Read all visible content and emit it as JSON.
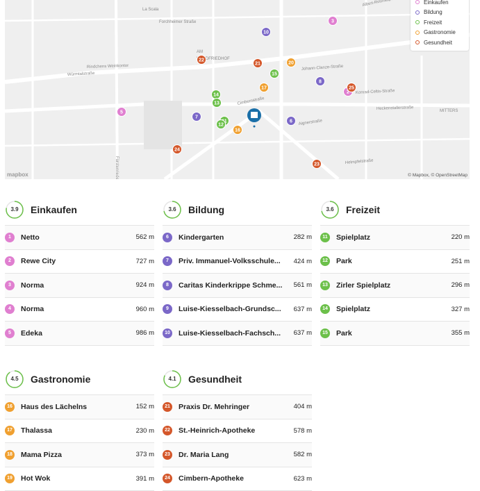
{
  "map": {
    "labels": [
      "La Scala",
      "Forchheimer Straße",
      "Albert-Roßhaupter-Straße",
      "AM",
      "WALDFRIEDHOF",
      "Rindchens Weinkontor",
      "Würmtalstraße",
      "Johann-Clanze-Straße",
      "Konrad-Celtis-Straße",
      "Heckenstallerstraße",
      "MITTERS",
      "Cimbernstraße",
      "Aignerstraße",
      "Helmpfelstraße",
      "Fürstenrieder Straße"
    ],
    "markers": [
      {
        "label": "3",
        "color": "#e07fd0"
      },
      {
        "label": "2",
        "color": "#e07fd0"
      },
      {
        "label": "5",
        "color": "#e07fd0"
      },
      {
        "label": "10",
        "color": "#7b68c8"
      },
      {
        "label": "8",
        "color": "#7b68c8"
      },
      {
        "label": "7",
        "color": "#7b68c8"
      },
      {
        "label": "6",
        "color": "#7b68c8"
      },
      {
        "label": "15",
        "color": "#6cc04a"
      },
      {
        "label": "14",
        "color": "#6cc04a"
      },
      {
        "label": "13",
        "color": "#6cc04a"
      },
      {
        "label": "11",
        "color": "#6cc04a"
      },
      {
        "label": "12",
        "color": "#6cc04a"
      },
      {
        "label": "20",
        "color": "#f0a030"
      },
      {
        "label": "17",
        "color": "#f0a030"
      },
      {
        "label": "16",
        "color": "#f0a030"
      },
      {
        "label": "22",
        "color": "#d4572a"
      },
      {
        "label": "21",
        "color": "#d4572a"
      },
      {
        "label": "25",
        "color": "#d4572a"
      },
      {
        "label": "24",
        "color": "#d4572a"
      },
      {
        "label": "23",
        "color": "#d4572a"
      }
    ],
    "attribution": "© Mapbox, © OpenStreetMap",
    "logo": "mapbox"
  },
  "legend": [
    {
      "name": "Einkaufen",
      "color": "#e07fd0"
    },
    {
      "name": "Bildung",
      "color": "#7b68c8"
    },
    {
      "name": "Freizeit",
      "color": "#6cc04a"
    },
    {
      "name": "Gastronomie",
      "color": "#f0a030"
    },
    {
      "name": "Gesundheit",
      "color": "#d4572a"
    }
  ],
  "sections": [
    {
      "title": "Einkaufen",
      "score": "3.9",
      "color": "#e07fd0",
      "items": [
        {
          "number": "1",
          "name": "Netto",
          "distance": "562 m"
        },
        {
          "number": "2",
          "name": "Rewe City",
          "distance": "727 m"
        },
        {
          "number": "3",
          "name": "Norma",
          "distance": "924 m"
        },
        {
          "number": "4",
          "name": "Norma",
          "distance": "960 m"
        },
        {
          "number": "5",
          "name": "Edeka",
          "distance": "986 m"
        }
      ]
    },
    {
      "title": "Bildung",
      "score": "3.6",
      "color": "#7b68c8",
      "items": [
        {
          "number": "6",
          "name": "Kindergarten",
          "distance": "282 m"
        },
        {
          "number": "7",
          "name": "Priv. Immanuel-Volksschule...",
          "distance": "424 m"
        },
        {
          "number": "8",
          "name": "Caritas Kinderkrippe Schme...",
          "distance": "561 m"
        },
        {
          "number": "9",
          "name": "Luise-Kiesselbach-Grundsc...",
          "distance": "637 m"
        },
        {
          "number": "10",
          "name": "Luise-Kiesselbach-Fachsch...",
          "distance": "637 m"
        }
      ]
    },
    {
      "title": "Freizeit",
      "score": "3.6",
      "color": "#6cc04a",
      "items": [
        {
          "number": "11",
          "name": "Spielplatz",
          "distance": "220 m"
        },
        {
          "number": "12",
          "name": "Park",
          "distance": "251 m"
        },
        {
          "number": "13",
          "name": "Zirler Spielplatz",
          "distance": "296 m"
        },
        {
          "number": "14",
          "name": "Spielplatz",
          "distance": "327 m"
        },
        {
          "number": "15",
          "name": "Park",
          "distance": "355 m"
        }
      ]
    },
    {
      "title": "Gastronomie",
      "score": "4.5",
      "color": "#f0a030",
      "items": [
        {
          "number": "16",
          "name": "Haus des Lächelns",
          "distance": "152 m"
        },
        {
          "number": "17",
          "name": "Thalassa",
          "distance": "230 m"
        },
        {
          "number": "18",
          "name": "Mama Pizza",
          "distance": "373 m"
        },
        {
          "number": "19",
          "name": "Hot Wok",
          "distance": "391 m"
        }
      ]
    },
    {
      "title": "Gesundheit",
      "score": "4.1",
      "color": "#d4572a",
      "items": [
        {
          "number": "21",
          "name": "Praxis Dr. Mehringer",
          "distance": "404 m"
        },
        {
          "number": "22",
          "name": "St.-Heinrich-Apotheke",
          "distance": "578 m"
        },
        {
          "number": "23",
          "name": "Dr. Maria Lang",
          "distance": "582 m"
        },
        {
          "number": "24",
          "name": "Cimbern-Apotheke",
          "distance": "623 m"
        }
      ]
    }
  ]
}
